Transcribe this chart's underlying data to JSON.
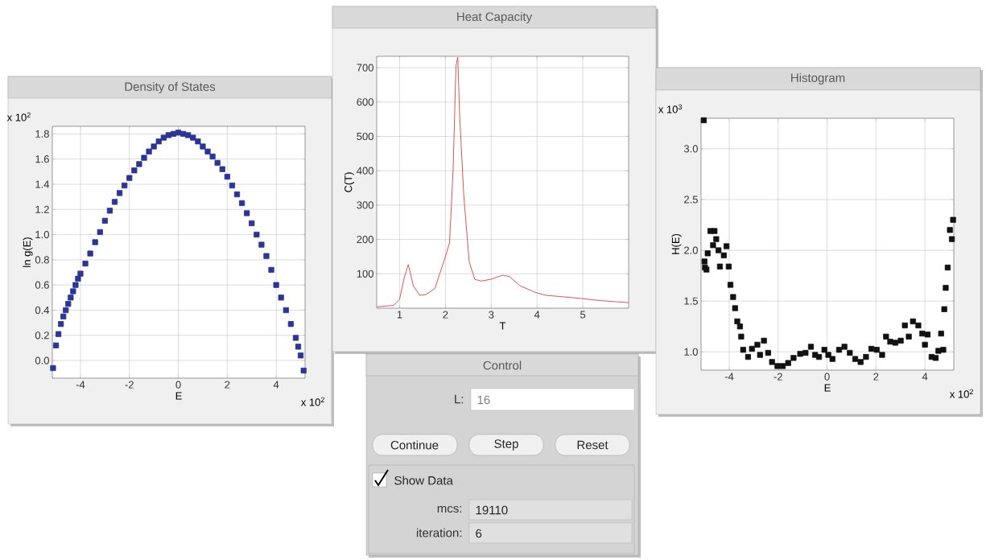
{
  "chart_data": [
    {
      "type": "scatter",
      "title": "Density of States",
      "xlabel": "E",
      "ylabel": "ln g(E)",
      "color": "#2b3595",
      "marker": "square",
      "grid": true,
      "x": [
        -5.12,
        -5.0,
        -4.9,
        -4.8,
        -4.7,
        -4.6,
        -4.5,
        -4.4,
        -4.3,
        -4.2,
        -4.1,
        -4.0,
        -3.8,
        -3.6,
        -3.4,
        -3.2,
        -3.0,
        -2.8,
        -2.6,
        -2.4,
        -2.2,
        -2.0,
        -1.8,
        -1.6,
        -1.4,
        -1.2,
        -1.0,
        -0.8,
        -0.6,
        -0.4,
        -0.2,
        0,
        0.2,
        0.4,
        0.6,
        0.8,
        1.0,
        1.2,
        1.4,
        1.6,
        1.8,
        2.0,
        2.2,
        2.4,
        2.6,
        2.8,
        3.0,
        3.2,
        3.4,
        3.6,
        3.8,
        4.0,
        4.2,
        4.4,
        4.6,
        4.8,
        4.9,
        5.0,
        5.12
      ],
      "values": [
        -0.06,
        0.12,
        0.21,
        0.29,
        0.35,
        0.4,
        0.45,
        0.5,
        0.55,
        0.6,
        0.65,
        0.69,
        0.77,
        0.85,
        0.94,
        1.02,
        1.11,
        1.19,
        1.26,
        1.33,
        1.39,
        1.45,
        1.51,
        1.56,
        1.61,
        1.66,
        1.7,
        1.74,
        1.77,
        1.79,
        1.8,
        1.81,
        1.8,
        1.79,
        1.77,
        1.74,
        1.7,
        1.66,
        1.62,
        1.57,
        1.52,
        1.46,
        1.39,
        1.32,
        1.25,
        1.17,
        1.09,
        1.0,
        0.92,
        0.83,
        0.72,
        0.6,
        0.5,
        0.4,
        0.29,
        0.18,
        0.11,
        0.04,
        -0.08
      ],
      "xlim": [
        -5.15,
        5.18
      ],
      "ylim": [
        -0.14,
        1.86
      ],
      "xticks": [
        -4,
        -2,
        0,
        2,
        4
      ],
      "yticks": [
        {
          "value": 0,
          "label": "0.0"
        },
        0.2,
        0.4,
        0.6,
        0.8,
        {
          "value": 1,
          "label": "1.0"
        },
        1.2,
        1.4,
        1.6,
        1.8
      ],
      "annotations": [
        "x 10$^{2}$",
        "x 10$^{2}$"
      ]
    },
    {
      "type": "line",
      "title": "Heat Capacity",
      "xlabel": "T",
      "ylabel": "C(T)",
      "color": "#d42a2a",
      "grid": true,
      "line_style": "solid",
      "x": [
        0.51,
        0.87,
        1.0,
        1.1,
        1.19,
        1.3,
        1.44,
        1.58,
        1.77,
        2.0,
        2.09,
        2.17,
        2.23,
        2.27,
        2.31,
        2.4,
        2.52,
        2.64,
        2.78,
        2.99,
        3.25,
        3.4,
        3.63,
        3.98,
        4.21,
        4.5,
        4.97,
        5.38,
        6.0
      ],
      "values": [
        4,
        8,
        26,
        88,
        127,
        65,
        37,
        40,
        57,
        150,
        190,
        408,
        705,
        730,
        565,
        330,
        135,
        84,
        79,
        84,
        96,
        92,
        65,
        45,
        37,
        34,
        28,
        22,
        16
      ],
      "xlim": [
        0.5,
        6.0
      ],
      "ylim": [
        0,
        733
      ],
      "xticks": [
        1,
        2,
        3,
        4,
        5
      ],
      "yticks": [
        100,
        200,
        300,
        400,
        500,
        600,
        700
      ]
    },
    {
      "type": "scatter",
      "title": "Histogram",
      "xlabel": "E",
      "ylabel": "H(E)",
      "color": "#111111",
      "marker": "square",
      "grid": true,
      "x": [
        -5.04,
        -5.01,
        -4.99,
        -4.93,
        -4.88,
        -4.77,
        -4.66,
        -4.6,
        -4.53,
        -4.44,
        -4.38,
        -4.22,
        -4.11,
        -4.02,
        -3.95,
        -3.84,
        -3.76,
        -3.67,
        -3.56,
        -3.51,
        -3.43,
        -3.23,
        -3.07,
        -2.85,
        -2.74,
        -2.58,
        -2.41,
        -2.25,
        -2.03,
        -1.81,
        -1.59,
        -1.37,
        -1.1,
        -0.88,
        -0.66,
        -0.49,
        -0.33,
        -0.11,
        0.05,
        0.22,
        0.49,
        0.71,
        0.93,
        1.15,
        1.37,
        1.59,
        1.81,
        2.03,
        2.25,
        2.41,
        2.58,
        2.79,
        3.01,
        3.18,
        3.34,
        3.51,
        3.73,
        3.89,
        4.0,
        4.11,
        4.27,
        4.44,
        4.55,
        4.66,
        4.75,
        4.79,
        4.85,
        4.93,
        5.02,
        5.1,
        5.15
      ],
      "values": [
        3.28,
        1.89,
        1.83,
        1.81,
        1.97,
        2.19,
        2.05,
        2.19,
        2.11,
        2.0,
        1.84,
        1.95,
        2.04,
        1.84,
        1.66,
        1.54,
        1.43,
        1.3,
        1.25,
        1.15,
        1.02,
        0.95,
        1.03,
        1.07,
        0.97,
        1.11,
        0.99,
        0.9,
        0.86,
        0.86,
        0.89,
        0.94,
        0.98,
        0.99,
        1.05,
        0.97,
        0.95,
        1.02,
        0.97,
        0.93,
        1.02,
        1.05,
        0.99,
        0.93,
        0.9,
        0.95,
        1.03,
        1.02,
        0.97,
        1.15,
        1.1,
        1.09,
        1.11,
        1.26,
        1.15,
        1.3,
        1.26,
        1.18,
        1.07,
        1.17,
        0.95,
        0.94,
        1.01,
        1.18,
        1.02,
        1.42,
        1.63,
        1.83,
        2.2,
        2.11,
        2.3
      ],
      "xlim": [
        -5.15,
        5.18
      ],
      "ylim": [
        0.82,
        3.3
      ],
      "xticks": [
        -4,
        -2,
        0,
        2,
        4
      ],
      "yticks": [
        {
          "value": 1,
          "label": "1.0"
        },
        1.5,
        {
          "value": 2,
          "label": "2.0"
        },
        2.5,
        {
          "value": 3,
          "label": "3.0"
        }
      ],
      "annotations": [
        "x 10$^{3}$",
        "x 10$^{2}$"
      ]
    },
    {
      "type": "other",
      "title": "Control",
      "annotations": [
        "L:",
        "16",
        "Continue",
        "Step",
        "Reset",
        "Show Data",
        "mcs:",
        "19110",
        "iteration:",
        "6"
      ]
    }
  ]
}
